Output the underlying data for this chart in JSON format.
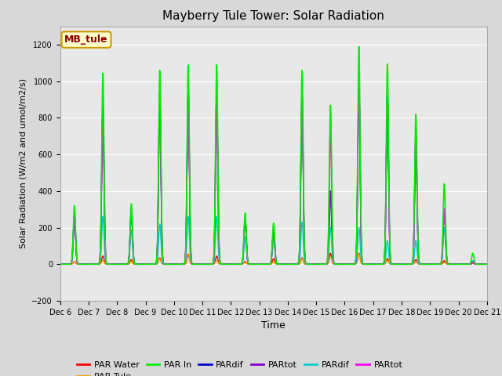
{
  "title": "Mayberry Tule Tower: Solar Radiation",
  "ylabel": "Solar Radiation (W/m2 and umol/m2/s)",
  "xlabel": "Time",
  "ylim": [
    -200,
    1300
  ],
  "yticks": [
    -200,
    0,
    200,
    400,
    600,
    800,
    1000,
    1200
  ],
  "fig_facecolor": "#d8d8d8",
  "axes_facecolor": "#e8e8e8",
  "legend_label": "MB_tule",
  "series": [
    {
      "label": "PAR Water",
      "color": "#ff0000",
      "lw": 1.0
    },
    {
      "label": "PAR Tule",
      "color": "#ff9900",
      "lw": 1.0
    },
    {
      "label": "PAR In",
      "color": "#00ee00",
      "lw": 1.2
    },
    {
      "label": "PARdif",
      "color": "#0000cc",
      "lw": 1.0
    },
    {
      "label": "PARtot",
      "color": "#8800cc",
      "lw": 1.0
    },
    {
      "label": "PARdif",
      "color": "#00cccc",
      "lw": 1.0
    },
    {
      "label": "PARtot",
      "color": "#ff00ff",
      "lw": 1.2
    }
  ],
  "n_days": 15,
  "day_points": 288,
  "sigma": 0.04,
  "peaks": [
    {
      "green": 320,
      "magenta": 270,
      "red": 15,
      "orange": 15,
      "blue": 270,
      "purple": 270,
      "cyan": 270
    },
    {
      "green": 1045,
      "magenta": 870,
      "red": 45,
      "orange": 20,
      "blue": 860,
      "purple": 860,
      "cyan": 260
    },
    {
      "green": 330,
      "magenta": 295,
      "red": 25,
      "orange": 15,
      "blue": 295,
      "purple": 295,
      "cyan": 190
    },
    {
      "green": 1060,
      "magenta": 940,
      "red": 35,
      "orange": 30,
      "blue": 940,
      "purple": 940,
      "cyan": 220
    },
    {
      "green": 1090,
      "magenta": 950,
      "red": 55,
      "orange": 50,
      "blue": 950,
      "purple": 950,
      "cyan": 260
    },
    {
      "green": 1090,
      "magenta": 930,
      "red": 45,
      "orange": 20,
      "blue": 930,
      "purple": 930,
      "cyan": 260
    },
    {
      "green": 280,
      "magenta": 250,
      "red": 15,
      "orange": 10,
      "blue": 250,
      "purple": 250,
      "cyan": 150
    },
    {
      "green": 225,
      "magenta": 190,
      "red": 30,
      "orange": 12,
      "blue": 190,
      "purple": 190,
      "cyan": 130
    },
    {
      "green": 1060,
      "magenta": 920,
      "red": 35,
      "orange": 30,
      "blue": 920,
      "purple": 920,
      "cyan": 230
    },
    {
      "green": 870,
      "magenta": 760,
      "red": 60,
      "orange": 40,
      "blue": 400,
      "purple": 400,
      "cyan": 200
    },
    {
      "green": 1190,
      "magenta": 990,
      "red": 60,
      "orange": 55,
      "blue": 990,
      "purple": 990,
      "cyan": 200
    },
    {
      "green": 1095,
      "magenta": 940,
      "red": 30,
      "orange": 20,
      "blue": 940,
      "purple": 940,
      "cyan": 130
    },
    {
      "green": 820,
      "magenta": 700,
      "red": 25,
      "orange": 15,
      "blue": 700,
      "purple": 700,
      "cyan": 130
    },
    {
      "green": 440,
      "magenta": 300,
      "red": 20,
      "orange": 10,
      "blue": 300,
      "purple": 300,
      "cyan": 200
    },
    {
      "green": 60,
      "magenta": 10,
      "red": 5,
      "orange": 5,
      "blue": 10,
      "purple": 10,
      "cyan": 20
    }
  ],
  "xtick_labels": [
    "Dec 6",
    "Dec 7",
    "Dec 8",
    "Dec 9",
    "Dec 10",
    "Dec 11",
    "Dec 12",
    "Dec 13",
    "Dec 14",
    "Dec 15",
    "Dec 16",
    "Dec 17",
    "Dec 18",
    "Dec 19",
    "Dec 20",
    "Dec 21"
  ]
}
